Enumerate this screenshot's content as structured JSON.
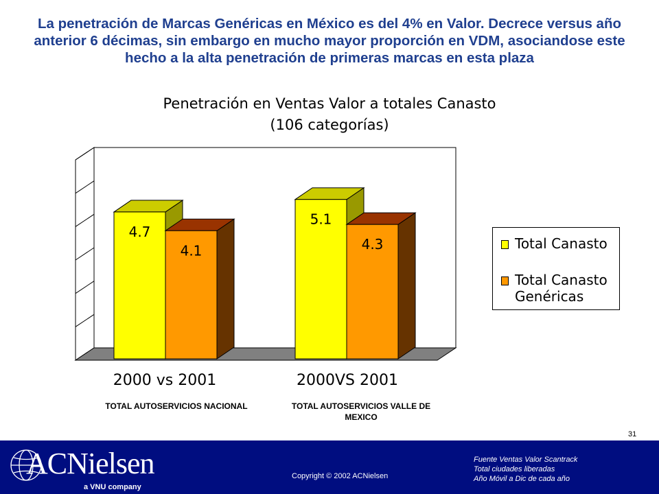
{
  "headline": "La  penetración de Marcas Genéricas en México es del 4% en Valor. Decrece versus año anterior 6 décimas, sin embargo en mucho mayor proporción en VDM, asociandose este hecho a la alta penetración de primeras marcas en esta plaza",
  "chart_data": {
    "type": "bar",
    "title": "Penetración en Ventas Valor a totales Canasto",
    "subtitle": "(106 categorías)",
    "categories": [
      "2000 vs 2001",
      "2000VS 2001"
    ],
    "category_sublabels": [
      "TOTAL AUTOSERVICIOS NACIONAL",
      "TOTAL AUTOSERVICIOS VALLE DE MEXICO"
    ],
    "series": [
      {
        "name": "Total Canasto",
        "values": [
          4.7,
          5.1
        ],
        "color": "#ffff00",
        "side_color": "#999900",
        "top_color": "#cccc00"
      },
      {
        "name": "Total Canasto Genéricas",
        "values": [
          4.1,
          4.3
        ],
        "color": "#ff9900",
        "side_color": "#663300",
        "top_color": "#993300"
      }
    ],
    "data_labels": [
      [
        "4.7",
        "5.1"
      ],
      [
        "4.1",
        "4.3"
      ]
    ],
    "ylim": [
      0,
      6.5
    ],
    "grid": false,
    "legend_position": "right"
  },
  "page_number": "31",
  "footer": {
    "copyright": "Copyright © 2002 ACNielsen",
    "source_lines": [
      "Fuente Ventas Valor Scantrack",
      "Total ciudades liberadas",
      "Año Móvil a Dic de cada año"
    ],
    "logo_text": "ACNielsen",
    "logo_sub": "a VNU company",
    "background_color": "#000d80"
  }
}
